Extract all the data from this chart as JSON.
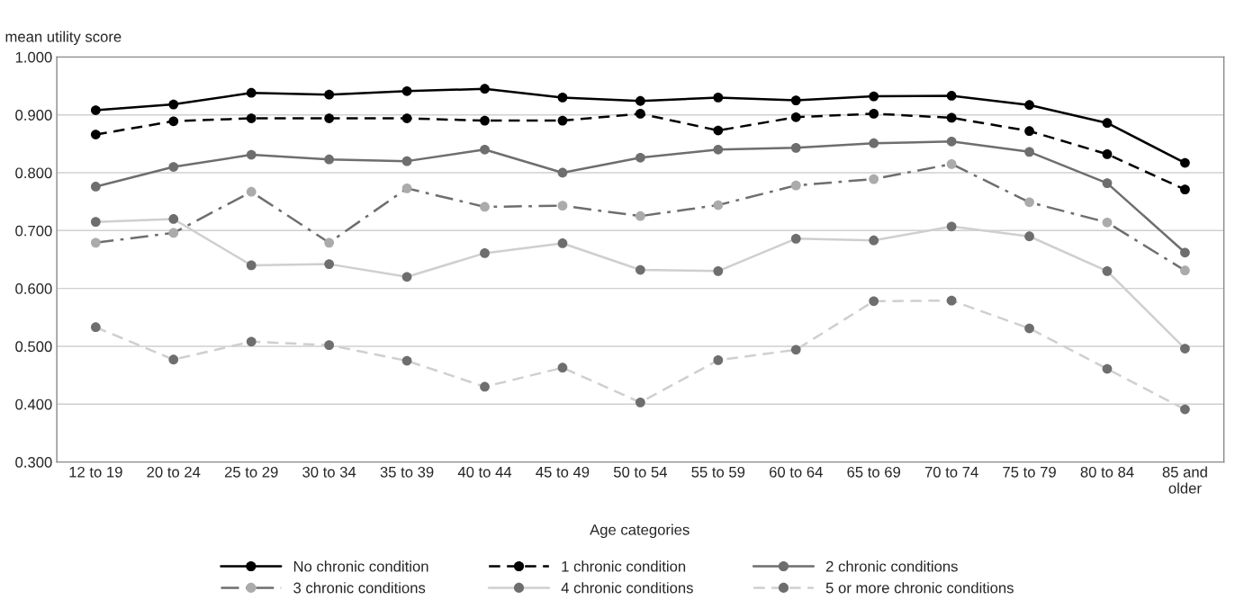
{
  "chart_data": {
    "type": "line",
    "ylabel": "mean utility score",
    "xlabel": "Age categories",
    "categories": [
      "12 to 19",
      "20 to 24",
      "25 to 29",
      "30 to 34",
      "35 to 39",
      "40 to 44",
      "45 to 49",
      "50 to 54",
      "55 to 59",
      "60 to 64",
      "65 to 69",
      "70 to 74",
      "75 to 79",
      "80 to 84",
      "85 and\nolder"
    ],
    "ylim": [
      0.3,
      1.0
    ],
    "yticks": [
      {
        "value": 0.3,
        "label": "0.300"
      },
      {
        "value": 0.4,
        "label": "0.400"
      },
      {
        "value": 0.5,
        "label": "0.500"
      },
      {
        "value": 0.6,
        "label": "0.600"
      },
      {
        "value": 0.7,
        "label": "0.700"
      },
      {
        "value": 0.8,
        "label": "0.800"
      },
      {
        "value": 0.9,
        "label": "0.900"
      },
      {
        "value": 1.0,
        "label": "1.000"
      }
    ],
    "grid": "y",
    "legend": "bottom",
    "marker": "circle",
    "series": [
      {
        "name": "No chronic condition",
        "color": "#000000",
        "line_style": "solid",
        "values": [
          0.908,
          0.918,
          0.938,
          0.935,
          0.941,
          0.945,
          0.93,
          0.924,
          0.93,
          0.925,
          0.932,
          0.933,
          0.917,
          0.886,
          0.817
        ]
      },
      {
        "name": "1 chronic condition",
        "color": "#000000",
        "line_style": "dashed",
        "values": [
          0.866,
          0.889,
          0.894,
          0.894,
          0.894,
          0.89,
          0.89,
          0.902,
          0.873,
          0.896,
          0.902,
          0.895,
          0.872,
          0.832,
          0.771
        ]
      },
      {
        "name": "2 chronic conditions",
        "color": "#6e6e6e",
        "line_style": "solid",
        "values": [
          0.776,
          0.81,
          0.831,
          0.823,
          0.82,
          0.84,
          0.8,
          0.826,
          0.84,
          0.843,
          0.851,
          0.854,
          0.836,
          0.782,
          0.662
        ]
      },
      {
        "name": "3 chronic conditions",
        "color": "#6e6e6e",
        "colors": [
          "#ababab",
          "#ababab",
          "#ababab",
          "#ababab",
          "#ababab",
          "#ababab",
          "#ababab",
          "#ababab",
          "#ababab",
          "#ababab",
          "#ababab",
          "#ababab",
          "#ababab",
          "#ababab",
          "#ababab"
        ],
        "line_style": "dashdot",
        "values": [
          0.679,
          0.696,
          0.767,
          0.679,
          0.773,
          0.741,
          0.743,
          0.725,
          0.744,
          0.778,
          0.789,
          0.815,
          0.749,
          0.714,
          0.631
        ]
      },
      {
        "name": "4 chronic conditions",
        "color": "#cfcfcf",
        "colors": [
          "#6e6e6e",
          "#6e6e6e",
          "#6e6e6e",
          "#6e6e6e",
          "#6e6e6e",
          "#6e6e6e",
          "#6e6e6e",
          "#6e6e6e",
          "#6e6e6e",
          "#6e6e6e",
          "#6e6e6e",
          "#6e6e6e",
          "#6e6e6e",
          "#6e6e6e",
          "#6e6e6e"
        ],
        "line_style": "solid",
        "values": [
          0.715,
          0.72,
          0.64,
          0.642,
          0.62,
          0.661,
          0.678,
          0.632,
          0.63,
          0.686,
          0.683,
          0.707,
          0.69,
          0.63,
          0.496
        ]
      },
      {
        "name": "5 or more chronic conditions",
        "color": "#cfcfcf",
        "colors": [
          "#6e6e6e",
          "#6e6e6e",
          "#6e6e6e",
          "#6e6e6e",
          "#6e6e6e",
          "#6e6e6e",
          "#6e6e6e",
          "#6e6e6e",
          "#6e6e6e",
          "#6e6e6e",
          "#6e6e6e",
          "#6e6e6e",
          "#6e6e6e",
          "#6e6e6e",
          "#6e6e6e"
        ],
        "line_style": "dashed",
        "values": [
          0.533,
          0.477,
          0.508,
          0.502,
          0.475,
          0.43,
          0.463,
          0.403,
          0.476,
          0.494,
          0.578,
          0.579,
          0.531,
          0.461,
          0.391
        ]
      }
    ]
  }
}
